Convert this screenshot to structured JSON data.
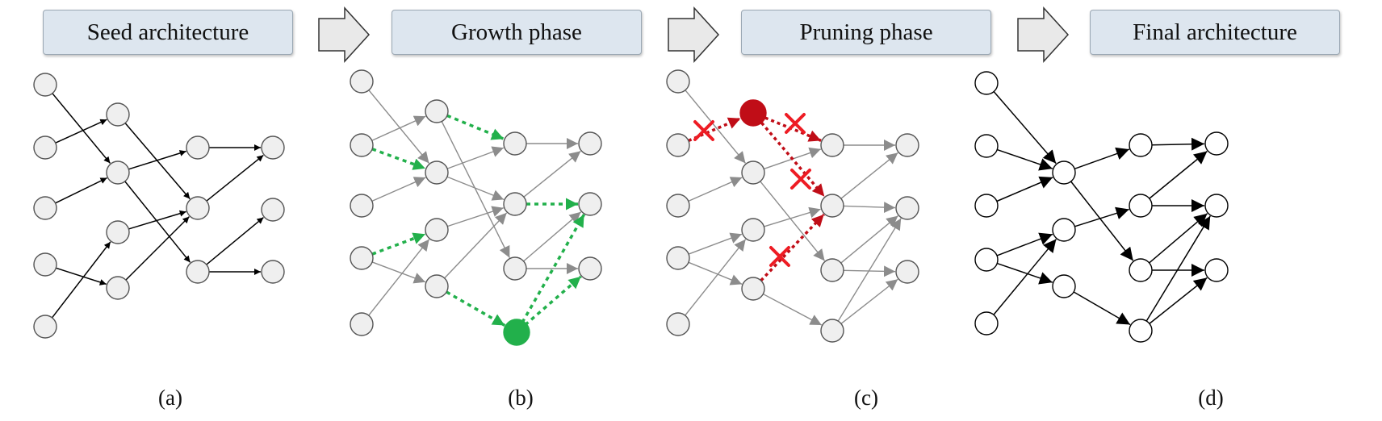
{
  "phases": [
    {
      "id": "a",
      "title": "Seed architecture",
      "caption": "(a)"
    },
    {
      "id": "b",
      "title": "Growth phase",
      "caption": "(b)"
    },
    {
      "id": "c",
      "title": "Pruning phase",
      "caption": "(c)"
    },
    {
      "id": "d",
      "title": "Final architecture",
      "caption": "(d)"
    }
  ],
  "colors": {
    "box_fill": "#dde6ef",
    "node_fill": "#efefef",
    "grown": "#22b04b",
    "pruned": "#c00d17",
    "prune_mark": "#ee1c24",
    "existing": "#8c8c8c",
    "seed": "#000000"
  }
}
